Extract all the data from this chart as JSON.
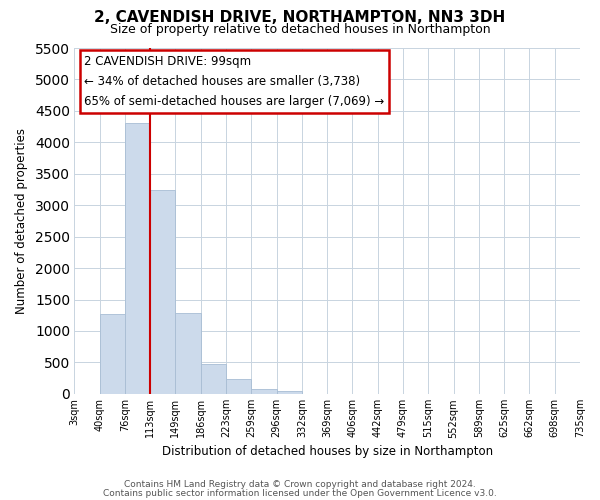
{
  "title": "2, CAVENDISH DRIVE, NORTHAMPTON, NN3 3DH",
  "subtitle": "Size of property relative to detached houses in Northampton",
  "xlabel": "Distribution of detached houses by size in Northampton",
  "ylabel": "Number of detached properties",
  "bar_color": "#ccdaeb",
  "bar_edgecolor": "#a8bdd4",
  "tick_labels": [
    "3sqm",
    "40sqm",
    "76sqm",
    "113sqm",
    "149sqm",
    "186sqm",
    "223sqm",
    "259sqm",
    "296sqm",
    "332sqm",
    "369sqm",
    "406sqm",
    "442sqm",
    "479sqm",
    "515sqm",
    "552sqm",
    "589sqm",
    "625sqm",
    "662sqm",
    "698sqm",
    "735sqm"
  ],
  "bar_values": [
    0,
    1270,
    4300,
    3250,
    1290,
    480,
    235,
    75,
    50,
    0,
    0,
    0,
    0,
    0,
    0,
    0,
    0,
    0,
    0,
    0
  ],
  "ylim": [
    0,
    5500
  ],
  "yticks": [
    0,
    500,
    1000,
    1500,
    2000,
    2500,
    3000,
    3500,
    4000,
    4500,
    5000,
    5500
  ],
  "vline_color": "#cc0000",
  "vline_x": 3,
  "annotation_text": "2 CAVENDISH DRIVE: 99sqm\n← 34% of detached houses are smaller (3,738)\n65% of semi-detached houses are larger (7,069) →",
  "footer_line1": "Contains HM Land Registry data © Crown copyright and database right 2024.",
  "footer_line2": "Contains public sector information licensed under the Open Government Licence v3.0.",
  "background_color": "#ffffff",
  "grid_color": "#c8d4e0"
}
